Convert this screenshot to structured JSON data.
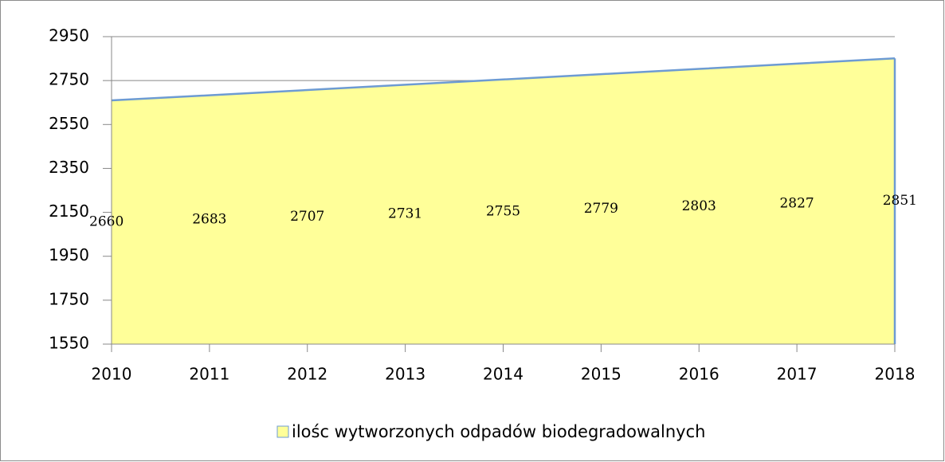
{
  "chart_data": {
    "type": "area",
    "categories": [
      "2010",
      "2011",
      "2012",
      "2013",
      "2014",
      "2015",
      "2016",
      "2017",
      "2018"
    ],
    "series": [
      {
        "name": "ilośc wytworzonych odpadów biodegradowalnych",
        "color": "#ffff99",
        "line_color": "#6d9bd3",
        "values": [
          2660,
          2683,
          2707,
          2731,
          2755,
          2779,
          2803,
          2827,
          2851
        ]
      }
    ],
    "ylim": [
      1550,
      2950
    ],
    "yticks": [
      1550,
      1750,
      1950,
      2150,
      2350,
      2550,
      2750,
      2950
    ],
    "grid": true,
    "legend": "bottom"
  }
}
